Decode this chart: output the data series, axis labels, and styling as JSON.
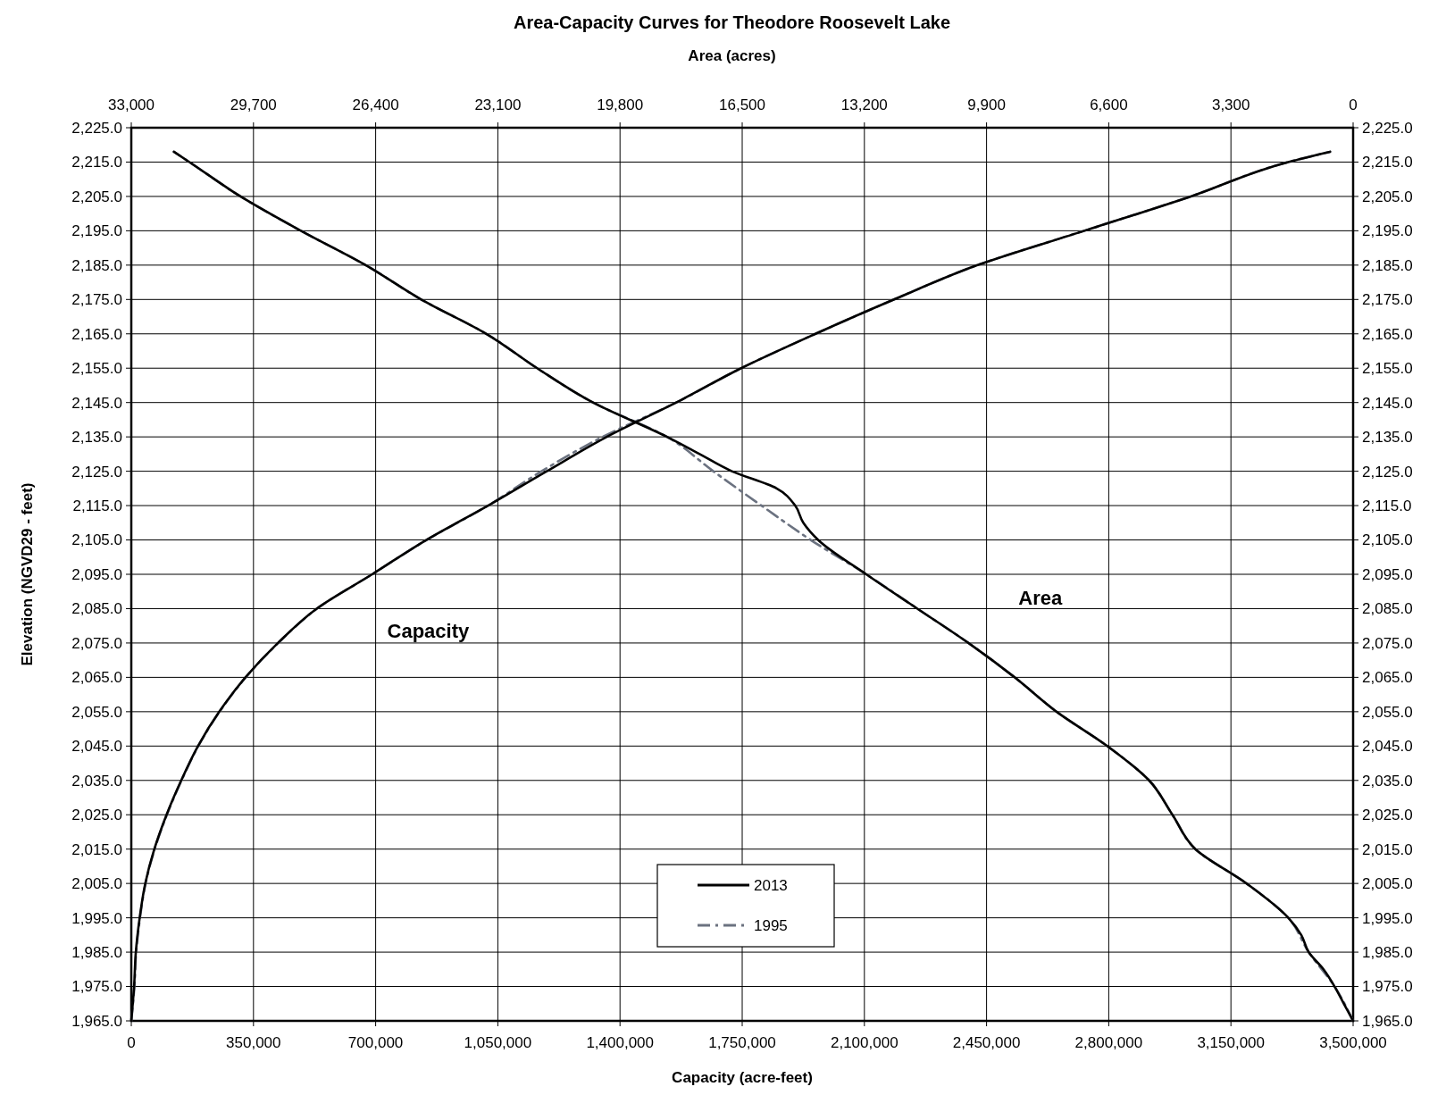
{
  "chart_data": {
    "type": "line",
    "title": "Area-Capacity Curves for Theodore Roosevelt Lake",
    "x2label": "Area (acres)",
    "xlabel": "Capacity (acre-feet)",
    "ylabel": "Elevation (NGVD29 - feet)",
    "xlim": [
      0,
      3500000
    ],
    "xticks": [
      {
        "value": 0,
        "label": "0"
      },
      {
        "value": 350000,
        "label": "350,000"
      },
      {
        "value": 700000,
        "label": "700,000"
      },
      {
        "value": 1050000,
        "label": "1,050,000"
      },
      {
        "value": 1400000,
        "label": "1,400,000"
      },
      {
        "value": 1750000,
        "label": "1,750,000"
      },
      {
        "value": 2100000,
        "label": "2,100,000"
      },
      {
        "value": 2450000,
        "label": "2,450,000"
      },
      {
        "value": 2800000,
        "label": "2,800,000"
      },
      {
        "value": 3150000,
        "label": "3,150,000"
      },
      {
        "value": 3500000,
        "label": "3,500,000"
      }
    ],
    "x2lim": [
      33000,
      0
    ],
    "x2ticks": [
      {
        "value": 33000,
        "label": "33,000"
      },
      {
        "value": 29700,
        "label": "29,700"
      },
      {
        "value": 26400,
        "label": "26,400"
      },
      {
        "value": 23100,
        "label": "23,100"
      },
      {
        "value": 19800,
        "label": "19,800"
      },
      {
        "value": 16500,
        "label": "16,500"
      },
      {
        "value": 13200,
        "label": "13,200"
      },
      {
        "value": 9900,
        "label": "9,900"
      },
      {
        "value": 6600,
        "label": "6,600"
      },
      {
        "value": 3300,
        "label": "3,300"
      },
      {
        "value": 0,
        "label": "0"
      }
    ],
    "ylim": [
      1965,
      2225
    ],
    "yticks": [
      {
        "value": 1965,
        "label": "1,965.0"
      },
      {
        "value": 1975,
        "label": "1,975.0"
      },
      {
        "value": 1985,
        "label": "1,985.0"
      },
      {
        "value": 1995,
        "label": "1,995.0"
      },
      {
        "value": 2005,
        "label": "2,005.0"
      },
      {
        "value": 2015,
        "label": "2,015.0"
      },
      {
        "value": 2025,
        "label": "2,025.0"
      },
      {
        "value": 2035,
        "label": "2,035.0"
      },
      {
        "value": 2045,
        "label": "2,045.0"
      },
      {
        "value": 2055,
        "label": "2,055.0"
      },
      {
        "value": 2065,
        "label": "2,065.0"
      },
      {
        "value": 2075,
        "label": "2,075.0"
      },
      {
        "value": 2085,
        "label": "2,085.0"
      },
      {
        "value": 2095,
        "label": "2,095.0"
      },
      {
        "value": 2105,
        "label": "2,105.0"
      },
      {
        "value": 2115,
        "label": "2,115.0"
      },
      {
        "value": 2125,
        "label": "2,125.0"
      },
      {
        "value": 2135,
        "label": "2,135.0"
      },
      {
        "value": 2145,
        "label": "2,145.0"
      },
      {
        "value": 2155,
        "label": "2,155.0"
      },
      {
        "value": 2165,
        "label": "2,165.0"
      },
      {
        "value": 2175,
        "label": "2,175.0"
      },
      {
        "value": 2185,
        "label": "2,185.0"
      },
      {
        "value": 2195,
        "label": "2,195.0"
      },
      {
        "value": 2205,
        "label": "2,205.0"
      },
      {
        "value": 2215,
        "label": "2,215.0"
      },
      {
        "value": 2225,
        "label": "2,225.0"
      }
    ],
    "y2lim": [
      1965,
      2225
    ],
    "y2ticks": [
      {
        "value": 1965,
        "label": "1,965.0"
      },
      {
        "value": 1975,
        "label": "1,975.0"
      },
      {
        "value": 1985,
        "label": "1,985.0"
      },
      {
        "value": 1995,
        "label": "1,995.0"
      },
      {
        "value": 2005,
        "label": "2,005.0"
      },
      {
        "value": 2015,
        "label": "2,015.0"
      },
      {
        "value": 2025,
        "label": "2,025.0"
      },
      {
        "value": 2035,
        "label": "2,035.0"
      },
      {
        "value": 2045,
        "label": "2,045.0"
      },
      {
        "value": 2055,
        "label": "2,055.0"
      },
      {
        "value": 2065,
        "label": "2,065.0"
      },
      {
        "value": 2075,
        "label": "2,075.0"
      },
      {
        "value": 2085,
        "label": "2,085.0"
      },
      {
        "value": 2095,
        "label": "2,095.0"
      },
      {
        "value": 2105,
        "label": "2,105.0"
      },
      {
        "value": 2115,
        "label": "2,115.0"
      },
      {
        "value": 2125,
        "label": "2,125.0"
      },
      {
        "value": 2135,
        "label": "2,135.0"
      },
      {
        "value": 2145,
        "label": "2,145.0"
      },
      {
        "value": 2155,
        "label": "2,155.0"
      },
      {
        "value": 2165,
        "label": "2,165.0"
      },
      {
        "value": 2175,
        "label": "2,175.0"
      },
      {
        "value": 2185,
        "label": "2,185.0"
      },
      {
        "value": 2195,
        "label": "2,195.0"
      },
      {
        "value": 2205,
        "label": "2,205.0"
      },
      {
        "value": 2215,
        "label": "2,215.0"
      },
      {
        "value": 2225,
        "label": "2,225.0"
      }
    ],
    "grid": true,
    "legend": "bottom",
    "marker": "none",
    "series": [
      {
        "name": "1995",
        "color": "#6b7280",
        "line_style": "dashed",
        "x": [
          0,
          9000,
          14000,
          25000,
          41000,
          67000,
          102000,
          144000,
          192000,
          253000,
          328000,
          421000,
          532000,
          690000,
          846000,
          1022000,
          1175000,
          1350000,
          1561000,
          1747000,
          1960000,
          2185000,
          2424000,
          2730000,
          3035000,
          3314000,
          3434000
        ],
        "values": [
          1965,
          1975,
          1985,
          1995,
          2005,
          2015,
          2025,
          2035,
          2045,
          2055,
          2065,
          2075,
          2085,
          2095,
          2105,
          2115,
          2125,
          2135,
          2145,
          2155,
          2165,
          2175,
          2185,
          2195,
          2205,
          2215,
          2218
        ]
      },
      {
        "color": "#6b7280",
        "line_style": "dashed",
        "axis": "x2",
        "x": [
          0,
          500,
          1200,
          1750,
          2880,
          4260,
          4880,
          5510,
          6640,
          8010,
          9140,
          10390,
          11770,
          13150,
          14650,
          15980,
          17280,
          18530,
          20530,
          22040,
          23410,
          25170,
          26670,
          28420,
          30050,
          31430,
          31850
        ],
        "values": [
          1965,
          1975,
          1985,
          1995,
          2005,
          2015,
          2025,
          2035,
          2045,
          2055,
          2065,
          2075,
          2085,
          2095,
          2105,
          2115,
          2125,
          2135,
          2145,
          2155,
          2165,
          2175,
          2185,
          2195,
          2205,
          2215,
          2218
        ]
      },
      {
        "name": "2013",
        "color": "#000000",
        "line_style": "solid",
        "x": [
          0,
          8000,
          13000,
          24000,
          40000,
          66000,
          101000,
          143000,
          191000,
          252000,
          327000,
          420000,
          531000,
          690000,
          845000,
          1022000,
          1190000,
          1362000,
          1561000,
          1747000,
          1960000,
          2185000,
          2424000,
          2730000,
          3035000,
          3314000,
          3434000
        ],
        "values": [
          1965,
          1975,
          1985,
          1995,
          2005,
          2015,
          2025,
          2035,
          2045,
          2055,
          2065,
          2075,
          2085,
          2095,
          2105,
          2115,
          2125,
          2135,
          2145,
          2155,
          2165,
          2175,
          2185,
          2195,
          2205,
          2215,
          2218
        ]
      },
      {
        "color": "#000000",
        "line_style": "solid",
        "axis": "x2",
        "x": [
          0,
          250,
          500,
          800,
          1200,
          1400,
          1750,
          2880,
          4260,
          4880,
          5510,
          6640,
          8010,
          9140,
          10390,
          11770,
          13150,
          14450,
          14850,
          15070,
          15570,
          16780,
          17650,
          18530,
          20530,
          22040,
          23410,
          25170,
          26670,
          28420,
          30050,
          31430,
          31850
        ],
        "values": [
          1965,
          1970,
          1975,
          1980,
          1985,
          1990,
          1995,
          2005,
          2015,
          2025,
          2035,
          2045,
          2055,
          2065,
          2075,
          2085,
          2095,
          2105,
          2110,
          2115,
          2120,
          2125,
          2130,
          2135,
          2145,
          2155,
          2165,
          2175,
          2185,
          2195,
          2205,
          2215,
          2218
        ]
      }
    ],
    "annotations": [
      "Capacity",
      "Area"
    ]
  }
}
